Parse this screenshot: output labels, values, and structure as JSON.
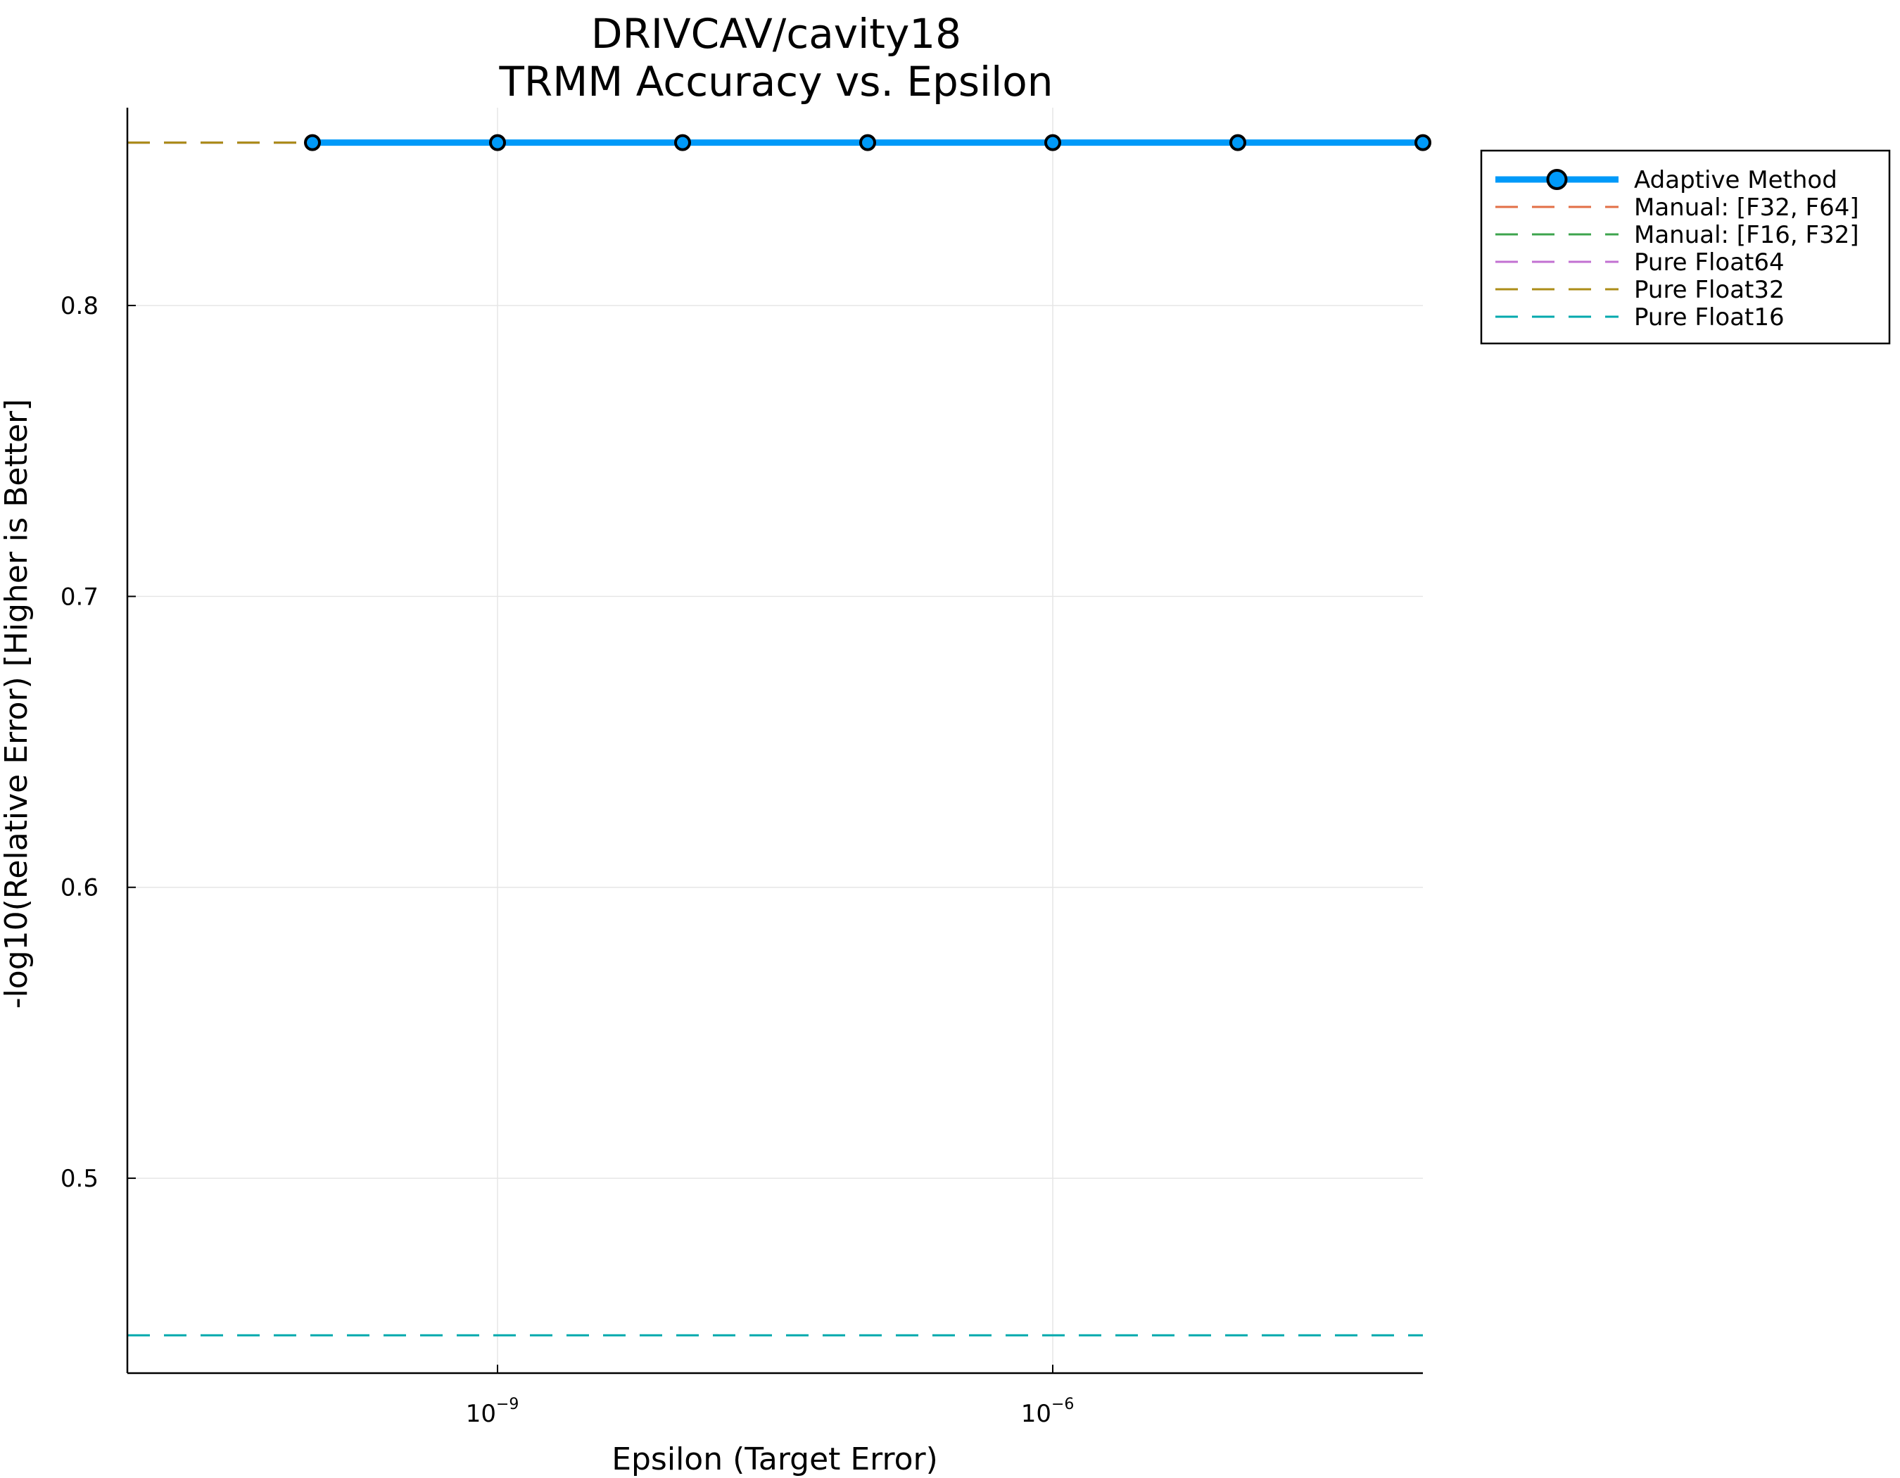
{
  "chart_data": {
    "type": "line",
    "title": "DRIVCAV/cavity18",
    "subtitle": "TRMM Accuracy vs. Epsilon",
    "xlabel": "Epsilon (Target Error)",
    "ylabel": "-log10(Relative Error) [Higher is Better]",
    "x_scale": "log10",
    "xlim": [
      1e-11,
      0.0001
    ],
    "ylim": [
      0.433,
      0.868
    ],
    "grid": true,
    "legend_position": "outside-right-top",
    "x_ticks": [
      {
        "value": 1e-09,
        "base": "10",
        "exponent": "−9"
      },
      {
        "value": 1e-06,
        "base": "10",
        "exponent": "−6"
      }
    ],
    "y_ticks": [
      {
        "value": 0.5,
        "label": "0.5"
      },
      {
        "value": 0.6,
        "label": "0.6"
      },
      {
        "value": 0.7,
        "label": "0.7"
      },
      {
        "value": 0.8,
        "label": "0.8"
      }
    ],
    "series": [
      {
        "name": "Adaptive Method",
        "style": "solid-markers",
        "color": "#009af9",
        "x": [
          1e-10,
          1e-09,
          1e-08,
          1e-07,
          1e-06,
          1e-05,
          0.0001
        ],
        "y": [
          0.856,
          0.856,
          0.856,
          0.856,
          0.856,
          0.856,
          0.856
        ]
      },
      {
        "name": "Manual: [F32, F64]",
        "style": "dashed-hline",
        "color": "#e26f46",
        "y": 0.856
      },
      {
        "name": "Manual: [F16, F32]",
        "style": "dashed-hline",
        "color": "#3da44d",
        "y": 0.856
      },
      {
        "name": "Pure Float64",
        "style": "dashed-hline",
        "color": "#c271d2",
        "y": 0.856
      },
      {
        "name": "Pure Float32",
        "style": "dashed-hline",
        "color": "#ac8d18",
        "y": 0.856
      },
      {
        "name": "Pure Float16",
        "style": "dashed-hline",
        "color": "#00a9ad",
        "y": 0.446
      }
    ]
  }
}
